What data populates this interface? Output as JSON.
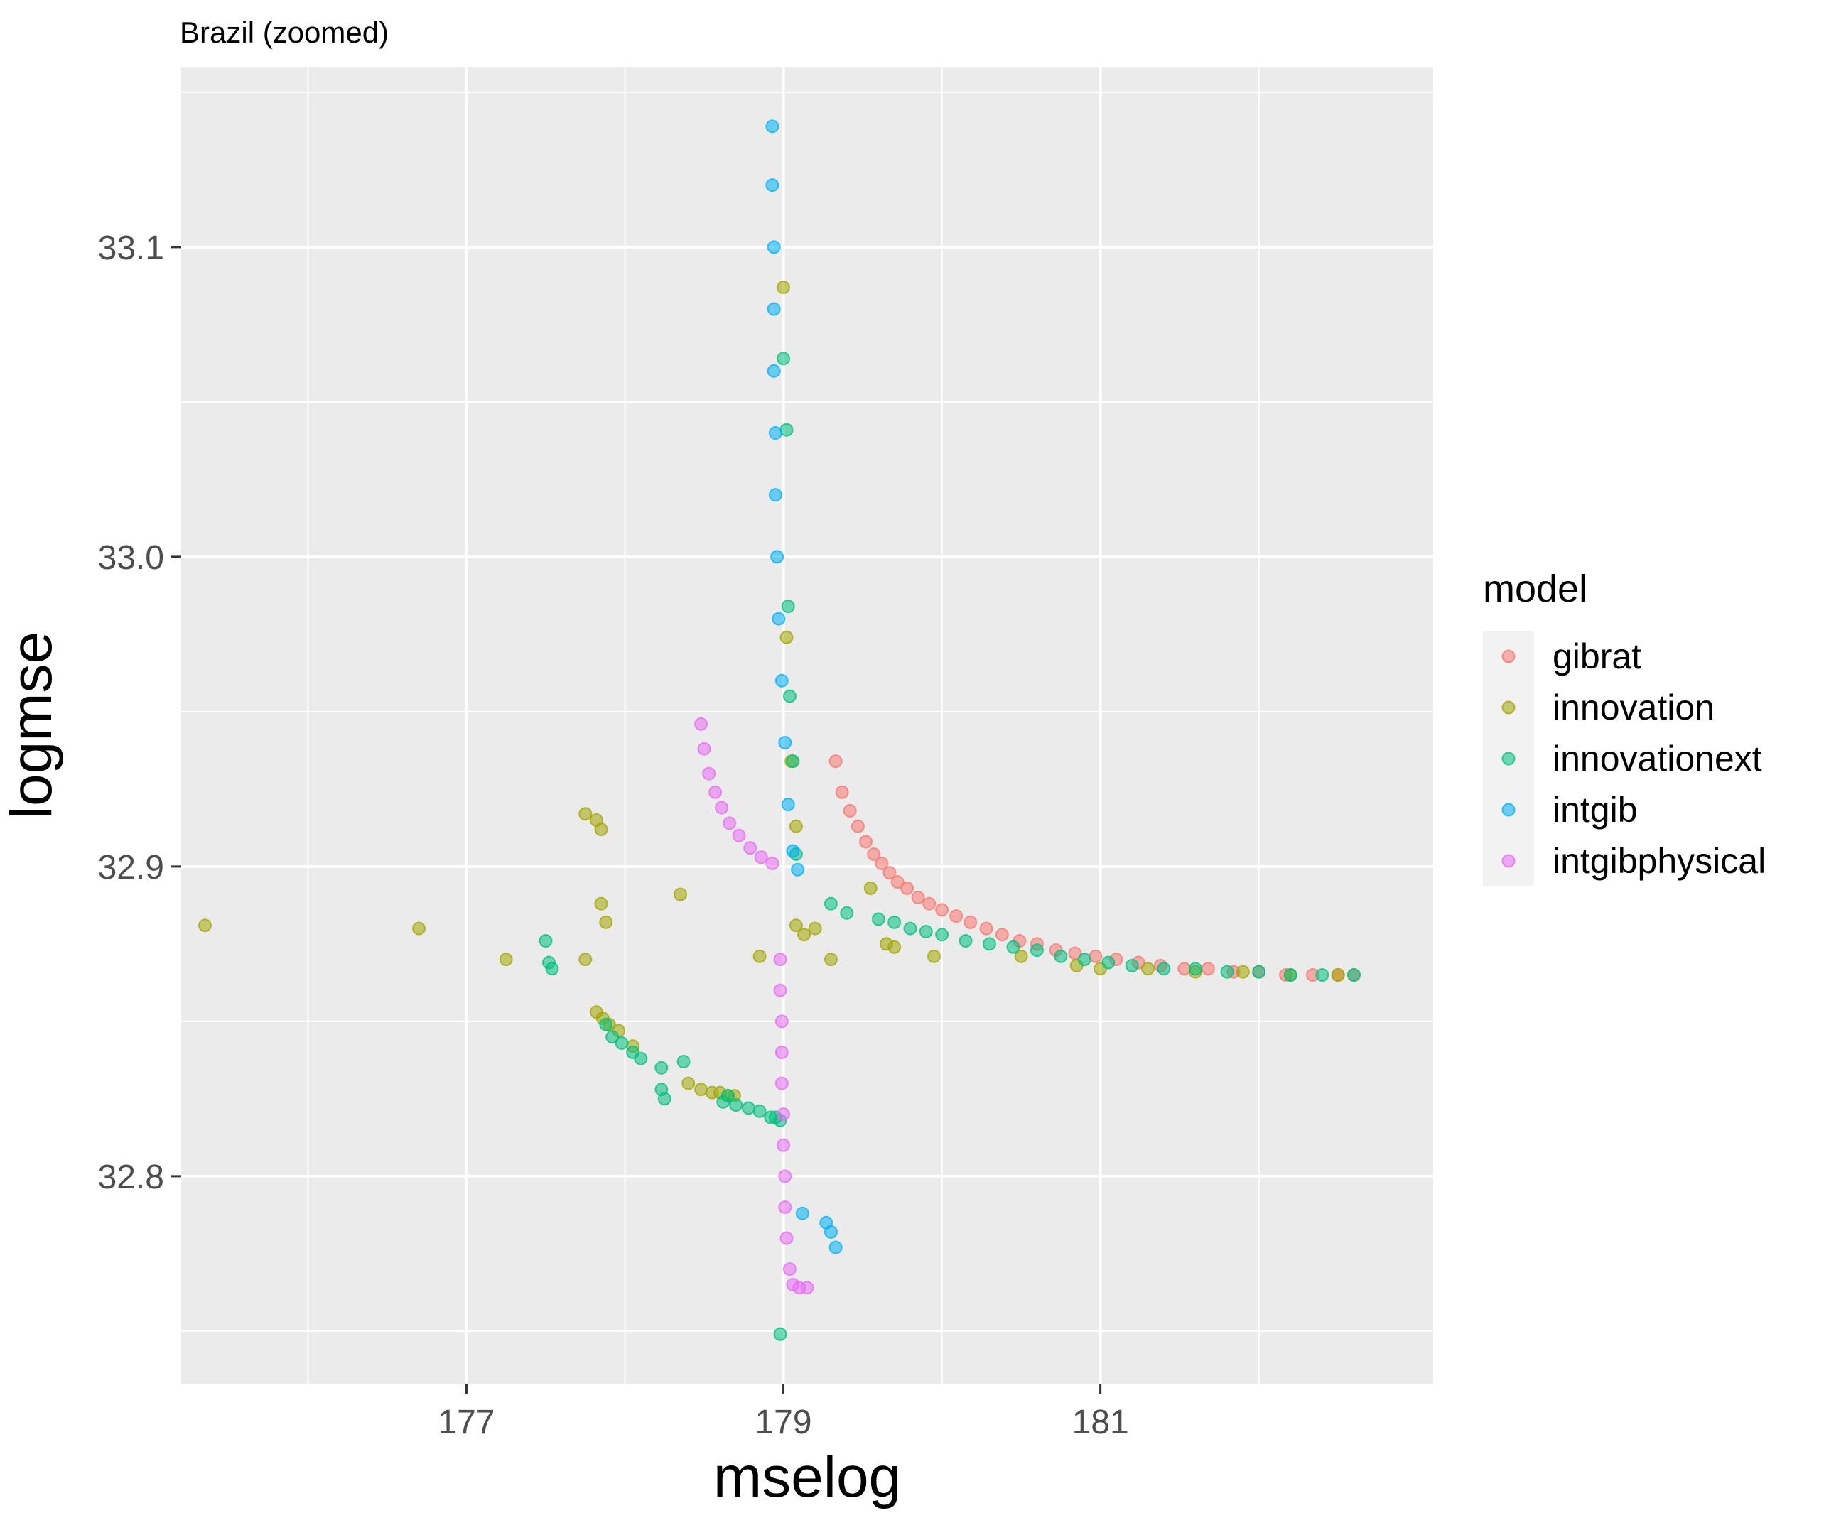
{
  "chart_data": {
    "type": "scatter",
    "title": "Brazil (zoomed)",
    "xlabel": "mselog",
    "ylabel": "logmse",
    "xlim": [
      175.2,
      183.1
    ],
    "ylim": [
      32.733,
      33.158
    ],
    "x_ticks": [
      177,
      179,
      181
    ],
    "y_ticks": [
      32.8,
      32.9,
      33.0,
      33.1
    ],
    "x_tick_labels": [
      "177",
      "179",
      "181"
    ],
    "y_tick_labels": [
      "32.8",
      "32.9",
      "33.0",
      "33.1"
    ],
    "grid": true,
    "legend": {
      "title": "model",
      "position": "right",
      "entries": [
        "gibrat",
        "innovation",
        "innovationext",
        "intgib",
        "intgibphysical"
      ]
    },
    "colors": {
      "gibrat": "#F8766D",
      "innovation": "#A3A500",
      "innovationext": "#00BF7D",
      "intgib": "#00B0F6",
      "intgibphysical": "#E76BF3"
    },
    "series": [
      {
        "name": "gibrat",
        "points": [
          [
            179.33,
            32.934
          ],
          [
            179.37,
            32.924
          ],
          [
            179.42,
            32.918
          ],
          [
            179.47,
            32.913
          ],
          [
            179.52,
            32.908
          ],
          [
            179.57,
            32.904
          ],
          [
            179.62,
            32.901
          ],
          [
            179.67,
            32.898
          ],
          [
            179.72,
            32.895
          ],
          [
            179.78,
            32.893
          ],
          [
            179.85,
            32.89
          ],
          [
            179.92,
            32.888
          ],
          [
            180.0,
            32.886
          ],
          [
            180.09,
            32.884
          ],
          [
            180.18,
            32.882
          ],
          [
            180.28,
            32.88
          ],
          [
            180.38,
            32.878
          ],
          [
            180.49,
            32.876
          ],
          [
            180.6,
            32.875
          ],
          [
            180.72,
            32.873
          ],
          [
            180.84,
            32.872
          ],
          [
            180.97,
            32.871
          ],
          [
            181.1,
            32.87
          ],
          [
            181.24,
            32.869
          ],
          [
            181.38,
            32.868
          ],
          [
            181.53,
            32.867
          ],
          [
            181.68,
            32.867
          ],
          [
            181.84,
            32.866
          ],
          [
            182.0,
            32.866
          ],
          [
            182.17,
            32.865
          ],
          [
            182.34,
            32.865
          ],
          [
            182.5,
            32.865
          ],
          [
            182.6,
            32.865
          ]
        ]
      },
      {
        "name": "innovation",
        "points": [
          [
            175.35,
            32.881
          ],
          [
            176.7,
            32.88
          ],
          [
            177.25,
            32.87
          ],
          [
            177.75,
            32.87
          ],
          [
            177.75,
            32.917
          ],
          [
            177.82,
            32.915
          ],
          [
            177.85,
            32.912
          ],
          [
            177.85,
            32.888
          ],
          [
            177.88,
            32.882
          ],
          [
            177.82,
            32.853
          ],
          [
            177.86,
            32.851
          ],
          [
            177.9,
            32.849
          ],
          [
            177.96,
            32.847
          ],
          [
            178.05,
            32.842
          ],
          [
            178.4,
            32.83
          ],
          [
            178.48,
            32.828
          ],
          [
            178.55,
            32.827
          ],
          [
            178.6,
            32.827
          ],
          [
            178.65,
            32.826
          ],
          [
            178.69,
            32.826
          ],
          [
            178.35,
            32.891
          ],
          [
            178.85,
            32.871
          ],
          [
            179.0,
            33.087
          ],
          [
            179.02,
            32.974
          ],
          [
            179.05,
            32.934
          ],
          [
            179.08,
            32.913
          ],
          [
            179.08,
            32.881
          ],
          [
            179.13,
            32.878
          ],
          [
            179.2,
            32.88
          ],
          [
            179.3,
            32.87
          ],
          [
            179.55,
            32.893
          ],
          [
            179.65,
            32.875
          ],
          [
            179.7,
            32.874
          ],
          [
            179.95,
            32.871
          ],
          [
            180.5,
            32.871
          ],
          [
            180.85,
            32.868
          ],
          [
            181.0,
            32.867
          ],
          [
            181.3,
            32.867
          ],
          [
            181.6,
            32.866
          ],
          [
            181.9,
            32.866
          ],
          [
            182.2,
            32.865
          ],
          [
            182.5,
            32.865
          ]
        ]
      },
      {
        "name": "innovationext",
        "points": [
          [
            177.5,
            32.876
          ],
          [
            177.52,
            32.869
          ],
          [
            177.54,
            32.867
          ],
          [
            177.88,
            32.849
          ],
          [
            177.92,
            32.845
          ],
          [
            177.98,
            32.843
          ],
          [
            178.05,
            32.84
          ],
          [
            178.1,
            32.838
          ],
          [
            178.23,
            32.835
          ],
          [
            178.37,
            32.837
          ],
          [
            178.23,
            32.828
          ],
          [
            178.25,
            32.825
          ],
          [
            178.62,
            32.824
          ],
          [
            178.65,
            32.826
          ],
          [
            178.7,
            32.823
          ],
          [
            178.78,
            32.822
          ],
          [
            178.85,
            32.821
          ],
          [
            178.92,
            32.819
          ],
          [
            178.95,
            32.819
          ],
          [
            178.98,
            32.818
          ],
          [
            178.98,
            32.749
          ],
          [
            179.0,
            33.064
          ],
          [
            179.02,
            33.041
          ],
          [
            179.03,
            32.984
          ],
          [
            179.04,
            32.955
          ],
          [
            179.06,
            32.934
          ],
          [
            179.08,
            32.904
          ],
          [
            179.3,
            32.888
          ],
          [
            179.4,
            32.885
          ],
          [
            179.6,
            32.883
          ],
          [
            179.7,
            32.882
          ],
          [
            179.8,
            32.88
          ],
          [
            179.9,
            32.879
          ],
          [
            180.0,
            32.878
          ],
          [
            180.15,
            32.876
          ],
          [
            180.3,
            32.875
          ],
          [
            180.45,
            32.874
          ],
          [
            180.6,
            32.873
          ],
          [
            180.75,
            32.871
          ],
          [
            180.9,
            32.87
          ],
          [
            181.05,
            32.869
          ],
          [
            181.2,
            32.868
          ],
          [
            181.4,
            32.867
          ],
          [
            181.6,
            32.867
          ],
          [
            181.8,
            32.866
          ],
          [
            182.0,
            32.866
          ],
          [
            182.2,
            32.865
          ],
          [
            182.4,
            32.865
          ],
          [
            182.6,
            32.865
          ]
        ]
      },
      {
        "name": "intgib",
        "points": [
          [
            178.93,
            33.139
          ],
          [
            178.93,
            33.12
          ],
          [
            178.94,
            33.1
          ],
          [
            178.94,
            33.08
          ],
          [
            178.94,
            33.06
          ],
          [
            178.95,
            33.04
          ],
          [
            178.95,
            33.02
          ],
          [
            178.96,
            33.0
          ],
          [
            178.97,
            32.98
          ],
          [
            178.99,
            32.96
          ],
          [
            179.01,
            32.94
          ],
          [
            179.03,
            32.92
          ],
          [
            179.06,
            32.905
          ],
          [
            179.09,
            32.899
          ],
          [
            179.12,
            32.788
          ],
          [
            179.27,
            32.785
          ],
          [
            179.3,
            32.782
          ],
          [
            179.33,
            32.777
          ]
        ]
      },
      {
        "name": "intgibphysical",
        "points": [
          [
            178.48,
            32.946
          ],
          [
            178.5,
            32.938
          ],
          [
            178.53,
            32.93
          ],
          [
            178.57,
            32.924
          ],
          [
            178.61,
            32.919
          ],
          [
            178.66,
            32.914
          ],
          [
            178.72,
            32.91
          ],
          [
            178.79,
            32.906
          ],
          [
            178.86,
            32.903
          ],
          [
            178.93,
            32.901
          ],
          [
            178.98,
            32.87
          ],
          [
            178.98,
            32.86
          ],
          [
            178.99,
            32.85
          ],
          [
            178.99,
            32.84
          ],
          [
            178.99,
            32.83
          ],
          [
            179.0,
            32.82
          ],
          [
            179.0,
            32.81
          ],
          [
            179.01,
            32.8
          ],
          [
            179.01,
            32.79
          ],
          [
            179.02,
            32.78
          ],
          [
            179.04,
            32.77
          ],
          [
            179.06,
            32.765
          ],
          [
            179.1,
            32.764
          ],
          [
            179.15,
            32.764
          ]
        ]
      }
    ]
  }
}
